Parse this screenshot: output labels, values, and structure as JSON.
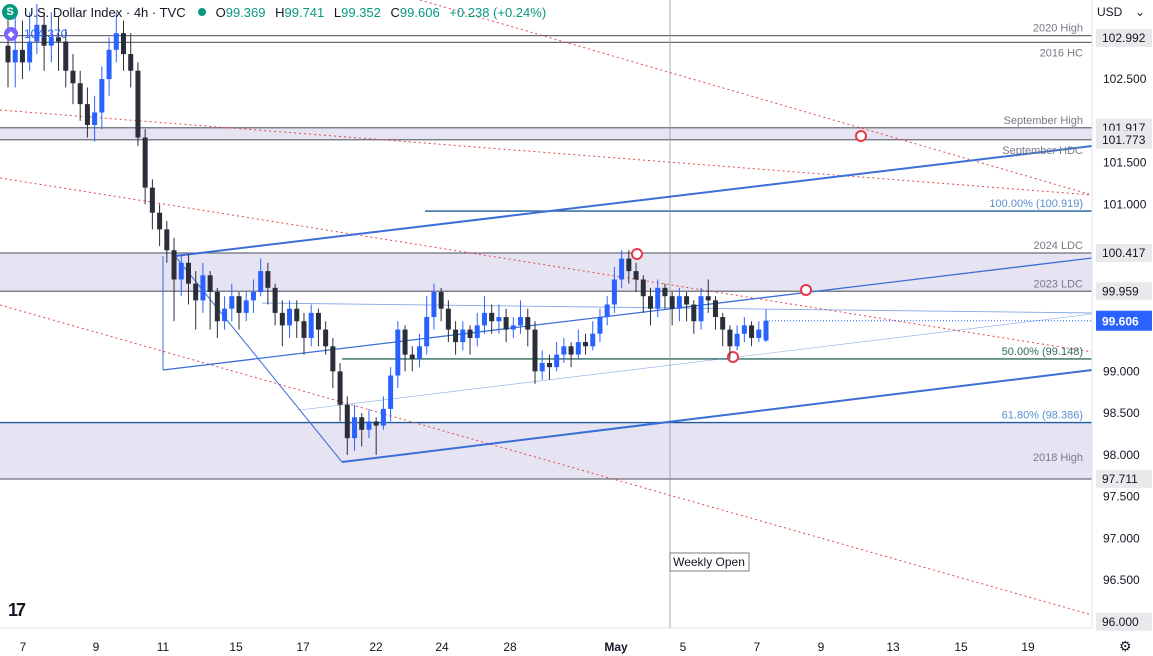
{
  "header": {
    "symbol_icon": "S",
    "title": "U.S. Dollar Index · 4h · TVC",
    "ohlc": [
      {
        "label": "O",
        "value": "99.369"
      },
      {
        "label": "H",
        "value": "99.741"
      },
      {
        "label": "L",
        "value": "99.352"
      },
      {
        "label": "C",
        "value": "99.606"
      }
    ],
    "change": "+0.238 (+0.24%)"
  },
  "indicator": {
    "label": "104.370"
  },
  "currency": {
    "label": "USD",
    "icon": "chevron-down-icon"
  },
  "colors": {
    "up": "#2962ff",
    "down": "#2a2e39",
    "zone": "#e6e3f2",
    "trend": "#3b6fd6",
    "fib": "#1e5b9c",
    "fib_mid": "#2e6b5e",
    "red_dotted": "#e04a4a",
    "marker": "#e5384d",
    "price_line": "#2962ff"
  },
  "chart_data": {
    "type": "candlestick",
    "title": "U.S. Dollar Index · 4h · TVC",
    "ylim": [
      95.75,
      103.45
    ],
    "y_ticks": [
      "102.500",
      "101.500",
      "101.000",
      "99.000",
      "98.500",
      "98.000",
      "97.500",
      "97.000",
      "96.500",
      "96.000"
    ],
    "x_ticks": [
      "7",
      "9",
      "11",
      "15",
      "17",
      "22",
      "24",
      "28",
      "May",
      "5",
      "7",
      "9",
      "13",
      "15",
      "19"
    ],
    "last_price": 99.606,
    "zones": [
      {
        "from": 101.773,
        "to": 101.917
      },
      {
        "from": 99.959,
        "to": 100.417
      },
      {
        "from": 97.711,
        "to": 98.386
      }
    ],
    "levels": [
      {
        "value": 103.02,
        "label": "2020 High"
      },
      {
        "value": 102.94,
        "label": "2016 HC"
      },
      {
        "value": 101.917,
        "label": "September High",
        "badge": "101.917"
      },
      {
        "value": 101.773,
        "label": "September HDC",
        "badge": "101.773"
      },
      {
        "value": 100.919,
        "label": "100.00% (100.919)"
      },
      {
        "value": 100.417,
        "label": "2024 LDC",
        "badge": "100.417"
      },
      {
        "value": 99.959,
        "label": "2023 LDC",
        "badge": "99.959"
      },
      {
        "value": 99.148,
        "label": "50.00% (99.148)"
      },
      {
        "value": 98.386,
        "label": "61.80% (98.386)"
      },
      {
        "value": 97.711,
        "label": "2018 High",
        "badge": "97.711"
      }
    ],
    "price_badges": [
      "102.992",
      "101.917",
      "101.773",
      "100.417",
      "99.959",
      "97.711",
      "96.000"
    ],
    "annotation": "Weekly Open",
    "candles": [
      [
        102.9,
        102.7,
        103.3,
        102.4
      ],
      [
        102.7,
        102.85,
        103.25,
        102.4
      ],
      [
        102.85,
        102.7,
        103.2,
        102.5
      ],
      [
        102.7,
        102.95,
        103.3,
        102.6
      ],
      [
        102.95,
        103.15,
        103.4,
        102.8
      ],
      [
        103.15,
        102.9,
        103.3,
        102.6
      ],
      [
        102.9,
        103.0,
        103.3,
        102.7
      ],
      [
        103.0,
        102.95,
        103.25,
        102.6
      ],
      [
        102.95,
        102.6,
        103.1,
        102.4
      ],
      [
        102.6,
        102.45,
        102.8,
        102.2
      ],
      [
        102.45,
        102.2,
        102.6,
        102.0
      ],
      [
        102.2,
        101.95,
        102.4,
        101.8
      ],
      [
        101.95,
        102.1,
        102.3,
        101.75
      ],
      [
        102.1,
        102.5,
        102.65,
        101.9
      ],
      [
        102.5,
        102.85,
        103.0,
        102.3
      ],
      [
        102.85,
        103.05,
        103.3,
        102.7
      ],
      [
        103.05,
        102.8,
        103.2,
        102.6
      ],
      [
        102.8,
        102.6,
        103.05,
        102.4
      ],
      [
        102.6,
        101.8,
        102.7,
        101.7
      ],
      [
        101.8,
        101.2,
        101.9,
        101.0
      ],
      [
        101.2,
        100.9,
        101.3,
        100.7
      ],
      [
        100.9,
        100.7,
        101.0,
        100.5
      ],
      [
        100.7,
        100.45,
        100.8,
        100.3
      ],
      [
        100.45,
        100.1,
        100.6,
        99.6
      ],
      [
        100.1,
        100.3,
        100.4,
        99.9
      ],
      [
        100.3,
        100.05,
        100.4,
        99.8
      ],
      [
        100.05,
        99.85,
        100.2,
        99.5
      ],
      [
        99.85,
        100.15,
        100.3,
        99.7
      ],
      [
        100.15,
        99.95,
        100.2,
        99.5
      ],
      [
        99.95,
        99.6,
        100.0,
        99.4
      ],
      [
        99.6,
        99.75,
        99.9,
        99.5
      ],
      [
        99.75,
        99.9,
        100.05,
        99.6
      ],
      [
        99.9,
        99.7,
        99.95,
        99.5
      ],
      [
        99.7,
        99.85,
        99.95,
        99.6
      ],
      [
        99.85,
        99.95,
        100.1,
        99.7
      ],
      [
        99.95,
        100.2,
        100.35,
        99.9
      ],
      [
        100.2,
        100.0,
        100.3,
        99.8
      ],
      [
        100.0,
        99.7,
        100.05,
        99.55
      ],
      [
        99.7,
        99.55,
        99.85,
        99.3
      ],
      [
        99.55,
        99.75,
        99.85,
        99.4
      ],
      [
        99.75,
        99.6,
        99.85,
        99.4
      ],
      [
        99.6,
        99.4,
        99.7,
        99.2
      ],
      [
        99.4,
        99.7,
        99.8,
        99.3
      ],
      [
        99.7,
        99.5,
        99.75,
        99.3
      ],
      [
        99.5,
        99.3,
        99.6,
        99.2
      ],
      [
        99.3,
        99.0,
        99.4,
        98.8
      ],
      [
        99.0,
        98.6,
        99.1,
        98.4
      ],
      [
        98.6,
        98.2,
        98.7,
        98.0
      ],
      [
        98.2,
        98.45,
        98.6,
        98.05
      ],
      [
        98.45,
        98.3,
        98.5,
        98.1
      ],
      [
        98.3,
        98.4,
        98.55,
        98.2
      ],
      [
        98.4,
        98.35,
        98.45,
        98.0
      ],
      [
        98.35,
        98.55,
        98.7,
        98.3
      ],
      [
        98.55,
        98.95,
        99.05,
        98.4
      ],
      [
        98.95,
        99.5,
        99.6,
        98.8
      ],
      [
        99.5,
        99.2,
        99.55,
        99.0
      ],
      [
        99.2,
        99.15,
        99.3,
        99.0
      ],
      [
        99.15,
        99.3,
        99.45,
        99.05
      ],
      [
        99.3,
        99.65,
        99.9,
        99.2
      ],
      [
        99.65,
        99.95,
        100.05,
        99.5
      ],
      [
        99.95,
        99.75,
        100.0,
        99.6
      ],
      [
        99.75,
        99.5,
        99.85,
        99.35
      ],
      [
        99.5,
        99.35,
        99.6,
        99.2
      ],
      [
        99.35,
        99.5,
        99.6,
        99.25
      ],
      [
        99.5,
        99.4,
        99.55,
        99.2
      ],
      [
        99.4,
        99.55,
        99.7,
        99.3
      ],
      [
        99.55,
        99.7,
        99.9,
        99.45
      ],
      [
        99.7,
        99.6,
        99.8,
        99.45
      ],
      [
        99.6,
        99.65,
        99.8,
        99.45
      ],
      [
        99.65,
        99.5,
        99.75,
        99.35
      ],
      [
        99.5,
        99.55,
        99.65,
        99.4
      ],
      [
        99.55,
        99.65,
        99.85,
        99.45
      ],
      [
        99.65,
        99.5,
        99.75,
        99.3
      ],
      [
        99.5,
        99.0,
        99.6,
        98.85
      ],
      [
        99.0,
        99.1,
        99.25,
        98.9
      ],
      [
        99.1,
        99.05,
        99.2,
        98.9
      ],
      [
        99.05,
        99.2,
        99.35,
        99.0
      ],
      [
        99.2,
        99.3,
        99.4,
        99.1
      ],
      [
        99.3,
        99.2,
        99.35,
        99.05
      ],
      [
        99.2,
        99.35,
        99.5,
        99.15
      ],
      [
        99.35,
        99.3,
        99.45,
        99.2
      ],
      [
        99.3,
        99.45,
        99.6,
        99.25
      ],
      [
        99.45,
        99.65,
        99.75,
        99.35
      ],
      [
        99.65,
        99.8,
        99.9,
        99.55
      ],
      [
        99.8,
        100.1,
        100.25,
        99.7
      ],
      [
        100.1,
        100.35,
        100.45,
        100.0
      ],
      [
        100.35,
        100.2,
        100.45,
        100.05
      ],
      [
        100.2,
        100.1,
        100.3,
        99.95
      ],
      [
        100.1,
        99.9,
        100.15,
        99.7
      ],
      [
        99.9,
        99.75,
        100.0,
        99.55
      ],
      [
        99.75,
        100.0,
        100.1,
        99.65
      ],
      [
        100.0,
        99.9,
        100.05,
        99.75
      ],
      [
        99.9,
        99.75,
        99.95,
        99.55
      ],
      [
        99.75,
        99.9,
        100.0,
        99.6
      ],
      [
        99.9,
        99.8,
        99.95,
        99.6
      ],
      [
        99.8,
        99.6,
        99.85,
        99.45
      ],
      [
        99.6,
        99.9,
        100.0,
        99.5
      ],
      [
        99.9,
        99.85,
        100.1,
        99.7
      ],
      [
        99.85,
        99.65,
        99.9,
        99.5
      ],
      [
        99.65,
        99.5,
        99.7,
        99.3
      ],
      [
        99.5,
        99.3,
        99.55,
        99.15
      ],
      [
        99.3,
        99.45,
        99.55,
        99.25
      ],
      [
        99.45,
        99.55,
        99.65,
        99.35
      ],
      [
        99.55,
        99.4,
        99.6,
        99.3
      ],
      [
        99.4,
        99.5,
        99.6,
        99.35
      ],
      [
        99.369,
        99.606,
        99.741,
        99.352
      ]
    ]
  }
}
